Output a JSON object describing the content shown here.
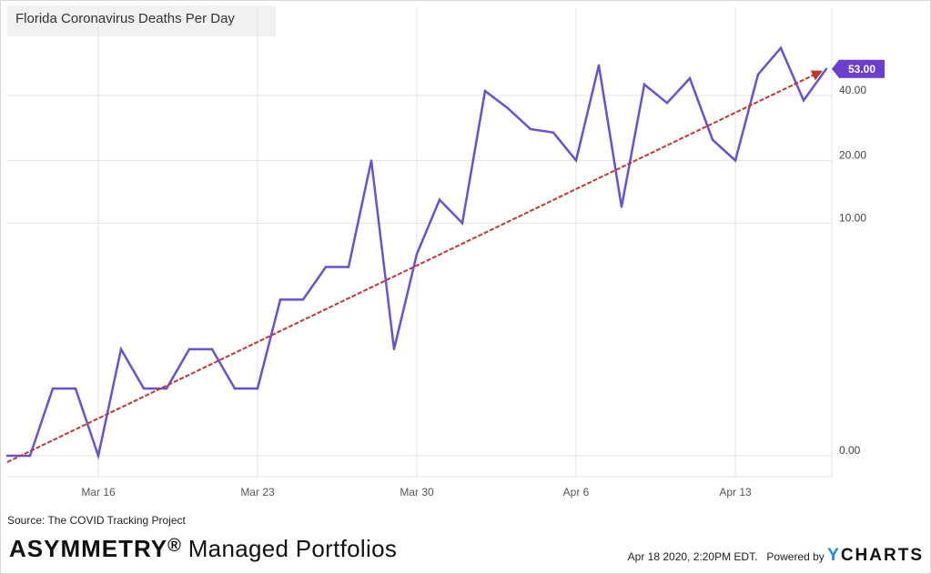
{
  "header": {
    "title": "Florida Coronavirus Deaths Per Day"
  },
  "footer": {
    "source": "Source: The COVID Tracking Project",
    "brand_bold": "ASYMMETRY",
    "brand_reg": "®",
    "brand_rest": " Managed Portfolios",
    "timestamp": "Apr 18 2020, 2:20PM EDT.",
    "powered_by": "Powered by",
    "ycharts_y": "Y",
    "ycharts_rest": "CHARTS"
  },
  "colors": {
    "series": "#6a4fd8",
    "trend": "#c0392b",
    "grid": "#e3e3e3",
    "badge": "#6a3fd0"
  },
  "chart_data": {
    "type": "line",
    "title": "Florida Coronavirus Deaths Per Day",
    "xlabel": "",
    "ylabel": "",
    "yscale": "log",
    "y_ticks": [
      0,
      10,
      20,
      40
    ],
    "y_tick_labels": [
      "0.00",
      "10.00",
      "20.00",
      "40.00"
    ],
    "x_ticks": [
      "Mar 16",
      "Mar 23",
      "Mar 30",
      "Apr 6",
      "Apr 13"
    ],
    "x_tick_dates": [
      "2020-03-16",
      "2020-03-23",
      "2020-03-30",
      "2020-04-06",
      "2020-04-13"
    ],
    "grid": true,
    "last_value_label": "53.00",
    "series": [
      {
        "x": [
          "2020-03-12",
          "2020-03-13",
          "2020-03-14",
          "2020-03-15",
          "2020-03-16",
          "2020-03-17",
          "2020-03-18",
          "2020-03-19",
          "2020-03-20",
          "2020-03-21",
          "2020-03-22",
          "2020-03-23",
          "2020-03-24",
          "2020-03-25",
          "2020-03-26",
          "2020-03-27",
          "2020-03-28",
          "2020-03-29",
          "2020-03-30",
          "2020-03-31",
          "2020-04-01",
          "2020-04-02",
          "2020-04-03",
          "2020-04-04",
          "2020-04-05",
          "2020-04-06",
          "2020-04-07",
          "2020-04-08",
          "2020-04-09",
          "2020-04-10",
          "2020-04-11",
          "2020-04-12",
          "2020-04-13",
          "2020-04-14",
          "2020-04-15",
          "2020-04-16",
          "2020-04-17"
        ],
        "values": [
          0,
          0,
          1,
          1,
          0,
          2,
          1,
          1,
          2,
          2,
          1,
          1,
          4,
          4,
          6,
          6,
          20,
          2,
          7,
          13,
          10,
          42,
          35,
          28,
          27,
          20,
          55,
          12,
          45,
          37,
          48,
          25,
          20,
          50,
          66,
          38,
          53
        ]
      },
      {
        "type": "trend",
        "x": [
          "2020-03-12",
          "2020-04-17"
        ],
        "values": [
          0,
          53
        ]
      }
    ]
  }
}
